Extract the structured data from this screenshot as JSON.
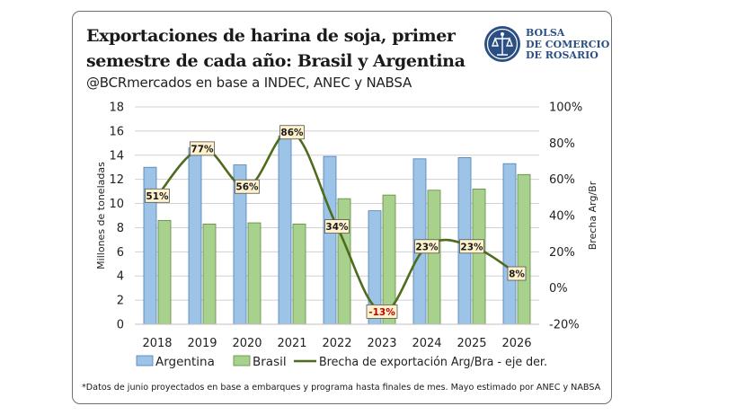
{
  "header": {
    "title": "Exportaciones de harina de soja, primer semestre de cada año: Brasil y Argentina",
    "subtitle": "@BCRmercados en base a INDEC, ANEC y NABSA"
  },
  "logo": {
    "line1": "BOLSA",
    "line2": "DE COMERCIO",
    "line3": "DE ROSARIO",
    "icon": "bcr-seal-icon"
  },
  "footnote": "*Datos de junio proyectados en base a embarques y programa hasta finales de mes. Mayo estimado por ANEC y NABSA",
  "colors": {
    "argentina": "#9dc3e6",
    "argentina_border": "#4a7ebb",
    "brasil": "#a9d18e",
    "brasil_border": "#5e8a3c",
    "brecha": "#4e6b1e",
    "label_bg": "#fff2cc",
    "negative_label": "#c00000"
  },
  "chart_data": {
    "type": "bar",
    "categories": [
      "2018",
      "2019",
      "2020",
      "2021",
      "2022",
      "2023",
      "2024",
      "2025",
      "2026"
    ],
    "series": [
      {
        "name": "Argentina",
        "type": "bar",
        "axis": "left",
        "values": [
          13.0,
          14.6,
          13.2,
          15.6,
          13.9,
          9.4,
          13.7,
          13.8,
          13.3
        ]
      },
      {
        "name": "Brasil",
        "type": "bar",
        "axis": "left",
        "values": [
          8.6,
          8.3,
          8.4,
          8.3,
          10.4,
          10.7,
          11.1,
          11.2,
          12.4
        ]
      },
      {
        "name": "Brecha de exportación Arg/Bra - eje der.",
        "type": "line",
        "axis": "right",
        "values": [
          51,
          77,
          56,
          86,
          34,
          -13,
          23,
          23,
          8
        ],
        "labels": [
          "51%",
          "77%",
          "56%",
          "86%",
          "34%",
          "-13%",
          "23%",
          "23%",
          "8%"
        ]
      }
    ],
    "ylabel": "Millones de toneladas",
    "y2label": "Brecha Arg/Br",
    "ylim": [
      0,
      18
    ],
    "y2lim": [
      -20,
      100
    ],
    "yticks": [
      "0",
      "2",
      "4",
      "6",
      "8",
      "10",
      "12",
      "14",
      "16",
      "18"
    ],
    "y2ticks": [
      "-20%",
      "0%",
      "20%",
      "40%",
      "60%",
      "80%",
      "100%"
    ],
    "grid": true,
    "legend_position": "bottom"
  }
}
